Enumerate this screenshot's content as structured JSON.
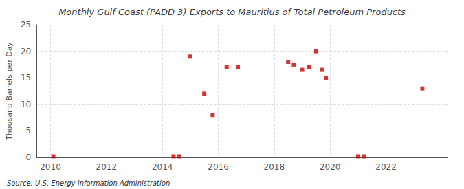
{
  "chart_data": {
    "type": "scatter",
    "title": "Monthly Gulf Coast (PADD 3) Exports to Mauritius of Total Petroleum Products",
    "ylabel": "Thousand Barrels per Day",
    "annotations": [
      "Source: U.S. Energy Information Administration"
    ],
    "x": [
      2010.1,
      2014.4,
      2014.6,
      2015.0,
      2015.5,
      2015.8,
      2016.3,
      2016.7,
      2018.5,
      2018.7,
      2019.0,
      2019.25,
      2019.5,
      2019.7,
      2019.85,
      2021.0,
      2021.2,
      2023.3
    ],
    "values": [
      0.2,
      0.2,
      0.2,
      19.0,
      12.0,
      8.0,
      17.0,
      17.0,
      18.0,
      17.5,
      16.5,
      17.0,
      20.0,
      16.5,
      15.0,
      0.2,
      0.2,
      13.0
    ],
    "color": "#cc0000",
    "marker": "square",
    "xlim": [
      2009.5,
      2024.2
    ],
    "ylim": [
      0,
      25
    ],
    "xticks": [
      2010,
      2012,
      2014,
      2016,
      2018,
      2020,
      2022
    ],
    "yticks": [
      0,
      5,
      10,
      15,
      20,
      25
    ],
    "grid": true
  }
}
